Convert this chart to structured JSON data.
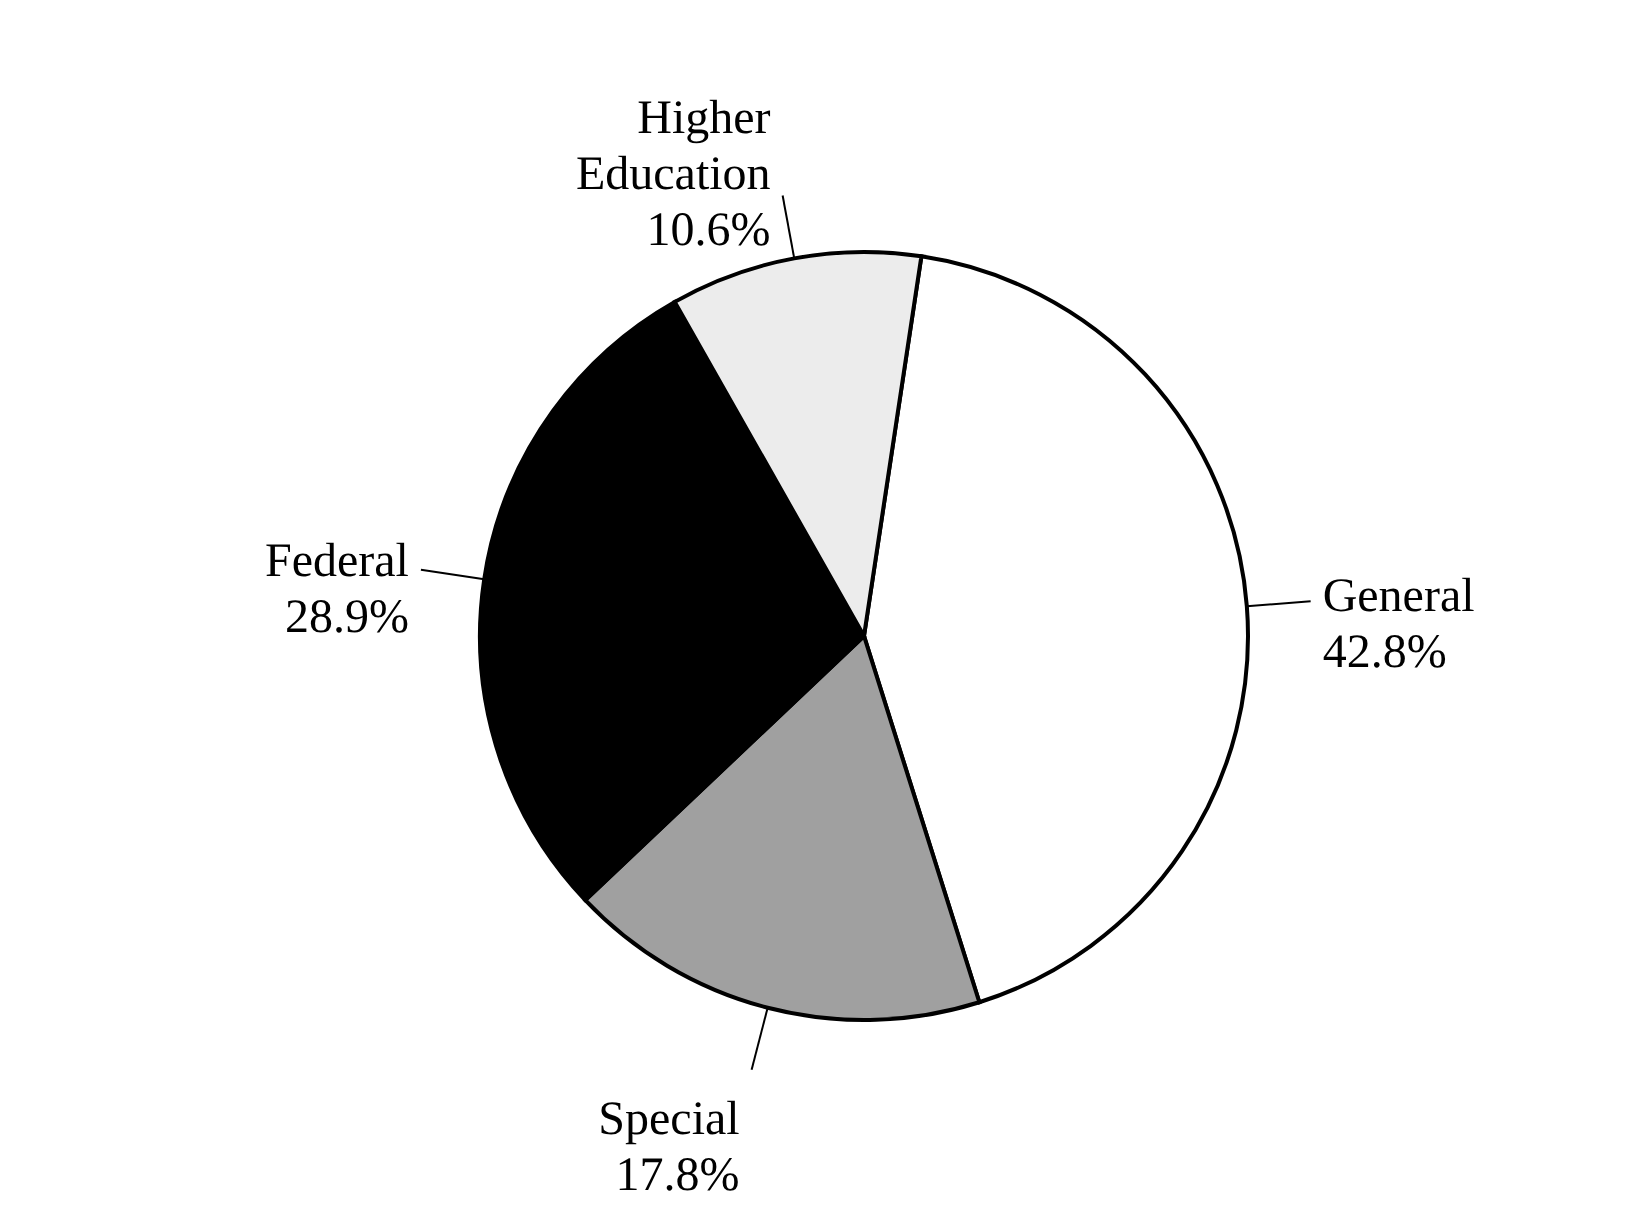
{
  "chart_data": {
    "type": "pie",
    "categories": [
      "General",
      "Special",
      "Federal",
      "Higher Education"
    ],
    "values": [
      42.8,
      17.8,
      28.9,
      10.6
    ],
    "colors": [
      "#ffffff",
      "#a0a0a0",
      "#000000",
      "#ececec"
    ],
    "value_labels": [
      "42.8%",
      "17.8%",
      "28.9%",
      "10.6%"
    ]
  }
}
